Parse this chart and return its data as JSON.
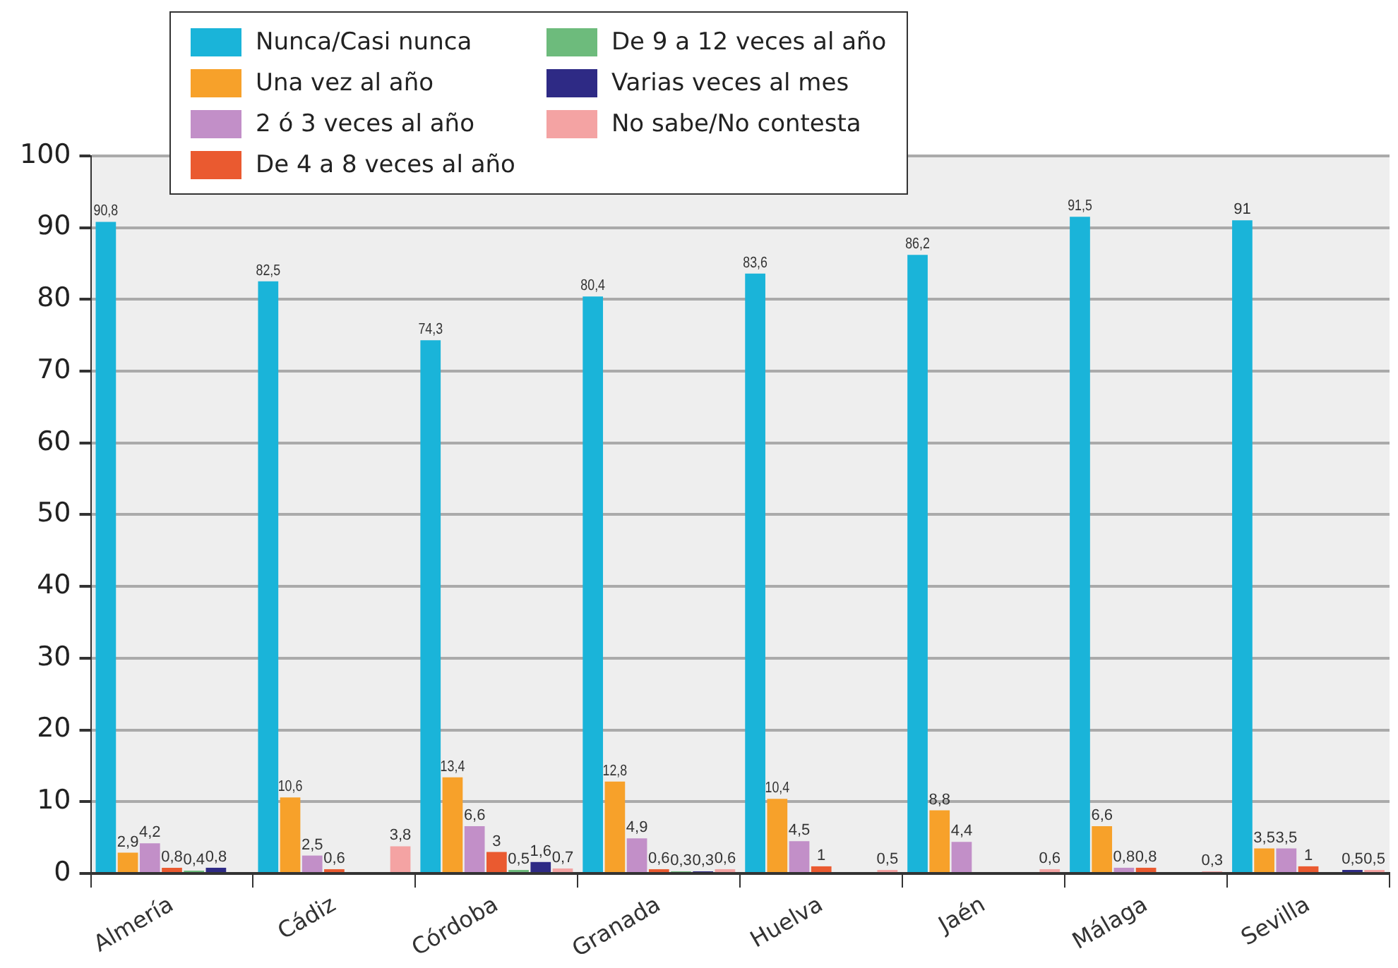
{
  "chart_data": {
    "type": "bar",
    "categories": [
      "Almería",
      "Cádiz",
      "Córdoba",
      "Granada",
      "Huelva",
      "Jaén",
      "Málaga",
      "Sevilla"
    ],
    "series": [
      {
        "name": "Nunca/Casi nunca",
        "color": "#1ab4d9",
        "values": [
          90.8,
          82.5,
          74.3,
          80.4,
          83.6,
          86.2,
          91.5,
          91
        ],
        "value_labels": [
          "90,8",
          "82,5",
          "74,3",
          "80,4",
          "83,6",
          "86,2",
          "91,5",
          "91"
        ]
      },
      {
        "name": "Una vez al año",
        "color": "#f7a12a",
        "values": [
          2.9,
          10.6,
          13.4,
          12.8,
          10.4,
          8.8,
          6.6,
          3.5
        ],
        "value_labels": [
          "2,9",
          "10,6",
          "13,4",
          "12,8",
          "10,4",
          "8,8",
          "6,6",
          "3,5"
        ]
      },
      {
        "name": "2 ó 3 veces al año",
        "color": "#c28fc8",
        "values": [
          4.2,
          2.5,
          6.6,
          4.9,
          4.5,
          4.4,
          0.8,
          3.5
        ],
        "value_labels": [
          "4,2",
          "2,5",
          "6,6",
          "4,9",
          "4,5",
          "4,4",
          "0,8",
          "3,5"
        ]
      },
      {
        "name": "De 4 a 8 veces al año",
        "color": "#ea5a30",
        "values": [
          0.8,
          0.6,
          3,
          0.6,
          1,
          null,
          0.8,
          1
        ],
        "value_labels": [
          "0,8",
          "0,6",
          "3",
          "0,6",
          "1",
          null,
          "0,8",
          "1"
        ]
      },
      {
        "name": "De 9 a 12 veces al año",
        "color": "#6dbb7c",
        "values": [
          0.4,
          null,
          0.5,
          0.3,
          null,
          null,
          null,
          null
        ],
        "value_labels": [
          "0,4",
          null,
          "0,5",
          "0,3",
          null,
          null,
          null,
          null
        ]
      },
      {
        "name": "Varias veces al mes",
        "color": "#2e2a85",
        "values": [
          0.8,
          null,
          1.6,
          0.3,
          null,
          null,
          null,
          0.5
        ],
        "value_labels": [
          "0,8",
          null,
          "1,6",
          "0,3",
          null,
          null,
          null,
          "0,5"
        ]
      },
      {
        "name": "No sabe/No contesta",
        "color": "#f4a3a3",
        "values": [
          null,
          3.8,
          0.7,
          0.6,
          0.5,
          0.6,
          0.3,
          0.5
        ],
        "value_labels": [
          null,
          "3,8",
          "0,7",
          "0,6",
          "0,5",
          "0,6",
          "0,3",
          "0,5"
        ]
      }
    ],
    "ylim": [
      0,
      100
    ],
    "yticks": [
      0,
      10,
      20,
      30,
      40,
      50,
      60,
      70,
      80,
      90,
      100
    ],
    "grid": "y",
    "legend": "top left"
  }
}
